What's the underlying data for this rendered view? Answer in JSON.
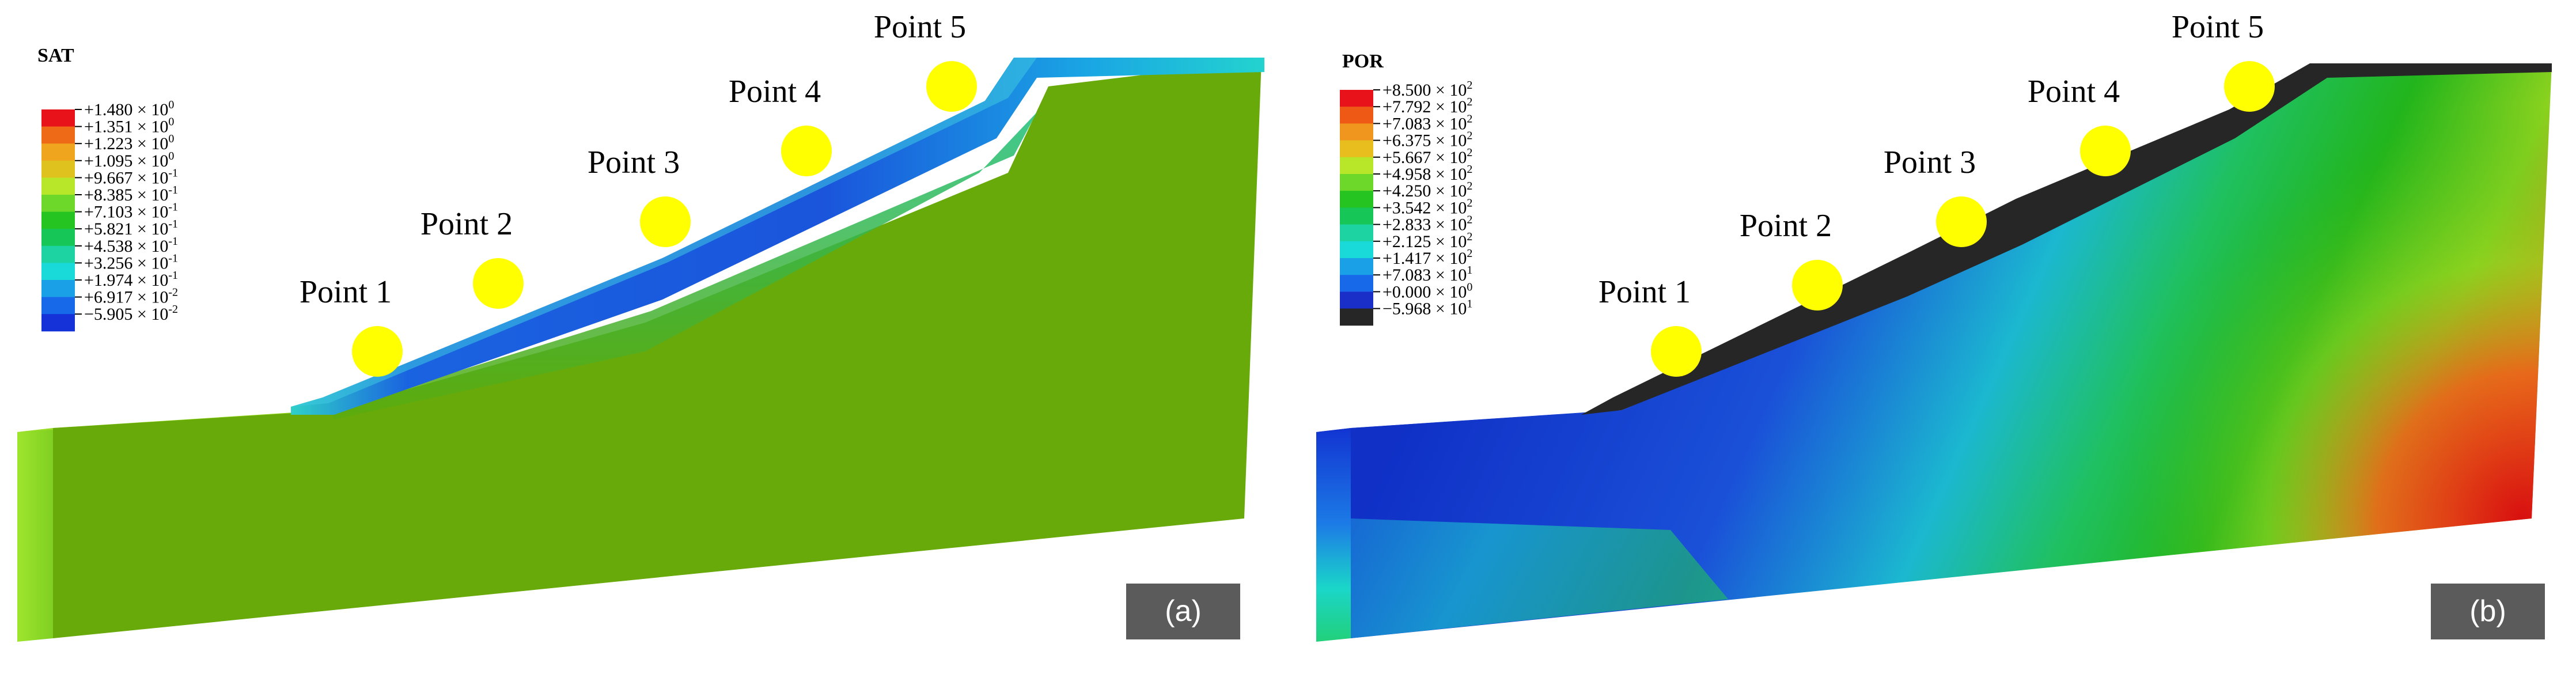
{
  "panels": [
    {
      "id": "a",
      "tag": "(a)",
      "legend": {
        "title": "SAT",
        "colors": [
          "#e8121a",
          "#ee6a16",
          "#f0a51e",
          "#dfc21e",
          "#b8e72a",
          "#6ed82a",
          "#25c421",
          "#16c656",
          "#1dd3a2",
          "#1ad9d9",
          "#1aa0e6",
          "#1869ea",
          "#1432d8"
        ],
        "labels": [
          {
            "m": "+1.480",
            "e": "0"
          },
          {
            "m": "+1.351",
            "e": "0"
          },
          {
            "m": "+1.223",
            "e": "0"
          },
          {
            "m": "+1.095",
            "e": "0"
          },
          {
            "m": "+9.667",
            "e": "-1"
          },
          {
            "m": "+8.385",
            "e": "-1"
          },
          {
            "m": "+7.103",
            "e": "-1"
          },
          {
            "m": "+5.821",
            "e": "-1"
          },
          {
            "m": "+4.538",
            "e": "-1"
          },
          {
            "m": "+3.256",
            "e": "-1"
          },
          {
            "m": "+1.974",
            "e": "-1"
          },
          {
            "m": "+6.917",
            "e": "-2"
          },
          {
            "m": "−5.905",
            "e": "-2"
          }
        ]
      },
      "points": [
        "Point 1",
        "Point 2",
        "Point 3",
        "Point 4",
        "Point 5"
      ]
    },
    {
      "id": "b",
      "tag": "(b)",
      "legend": {
        "title": "POR",
        "colors": [
          "#e8121a",
          "#ee5a16",
          "#f0951e",
          "#e8be1e",
          "#b8e72a",
          "#6ed82a",
          "#25c421",
          "#16c656",
          "#1dd3a2",
          "#1ad9d9",
          "#1aa0e6",
          "#1869ea",
          "#1a2fc8",
          "#262626"
        ],
        "labels": [
          {
            "m": "+8.500",
            "e": "2"
          },
          {
            "m": "+7.792",
            "e": "2"
          },
          {
            "m": "+7.083",
            "e": "2"
          },
          {
            "m": "+6.375",
            "e": "2"
          },
          {
            "m": "+5.667",
            "e": "2"
          },
          {
            "m": "+4.958",
            "e": "2"
          },
          {
            "m": "+4.250",
            "e": "2"
          },
          {
            "m": "+3.542",
            "e": "2"
          },
          {
            "m": "+2.833",
            "e": "2"
          },
          {
            "m": "+2.125",
            "e": "2"
          },
          {
            "m": "+1.417",
            "e": "2"
          },
          {
            "m": "+7.083",
            "e": "1"
          },
          {
            "m": "+0.000",
            "e": "0"
          },
          {
            "m": "−5.968",
            "e": "1"
          }
        ]
      },
      "points": [
        "Point 1",
        "Point 2",
        "Point 3",
        "Point 4",
        "Point 5"
      ]
    }
  ]
}
